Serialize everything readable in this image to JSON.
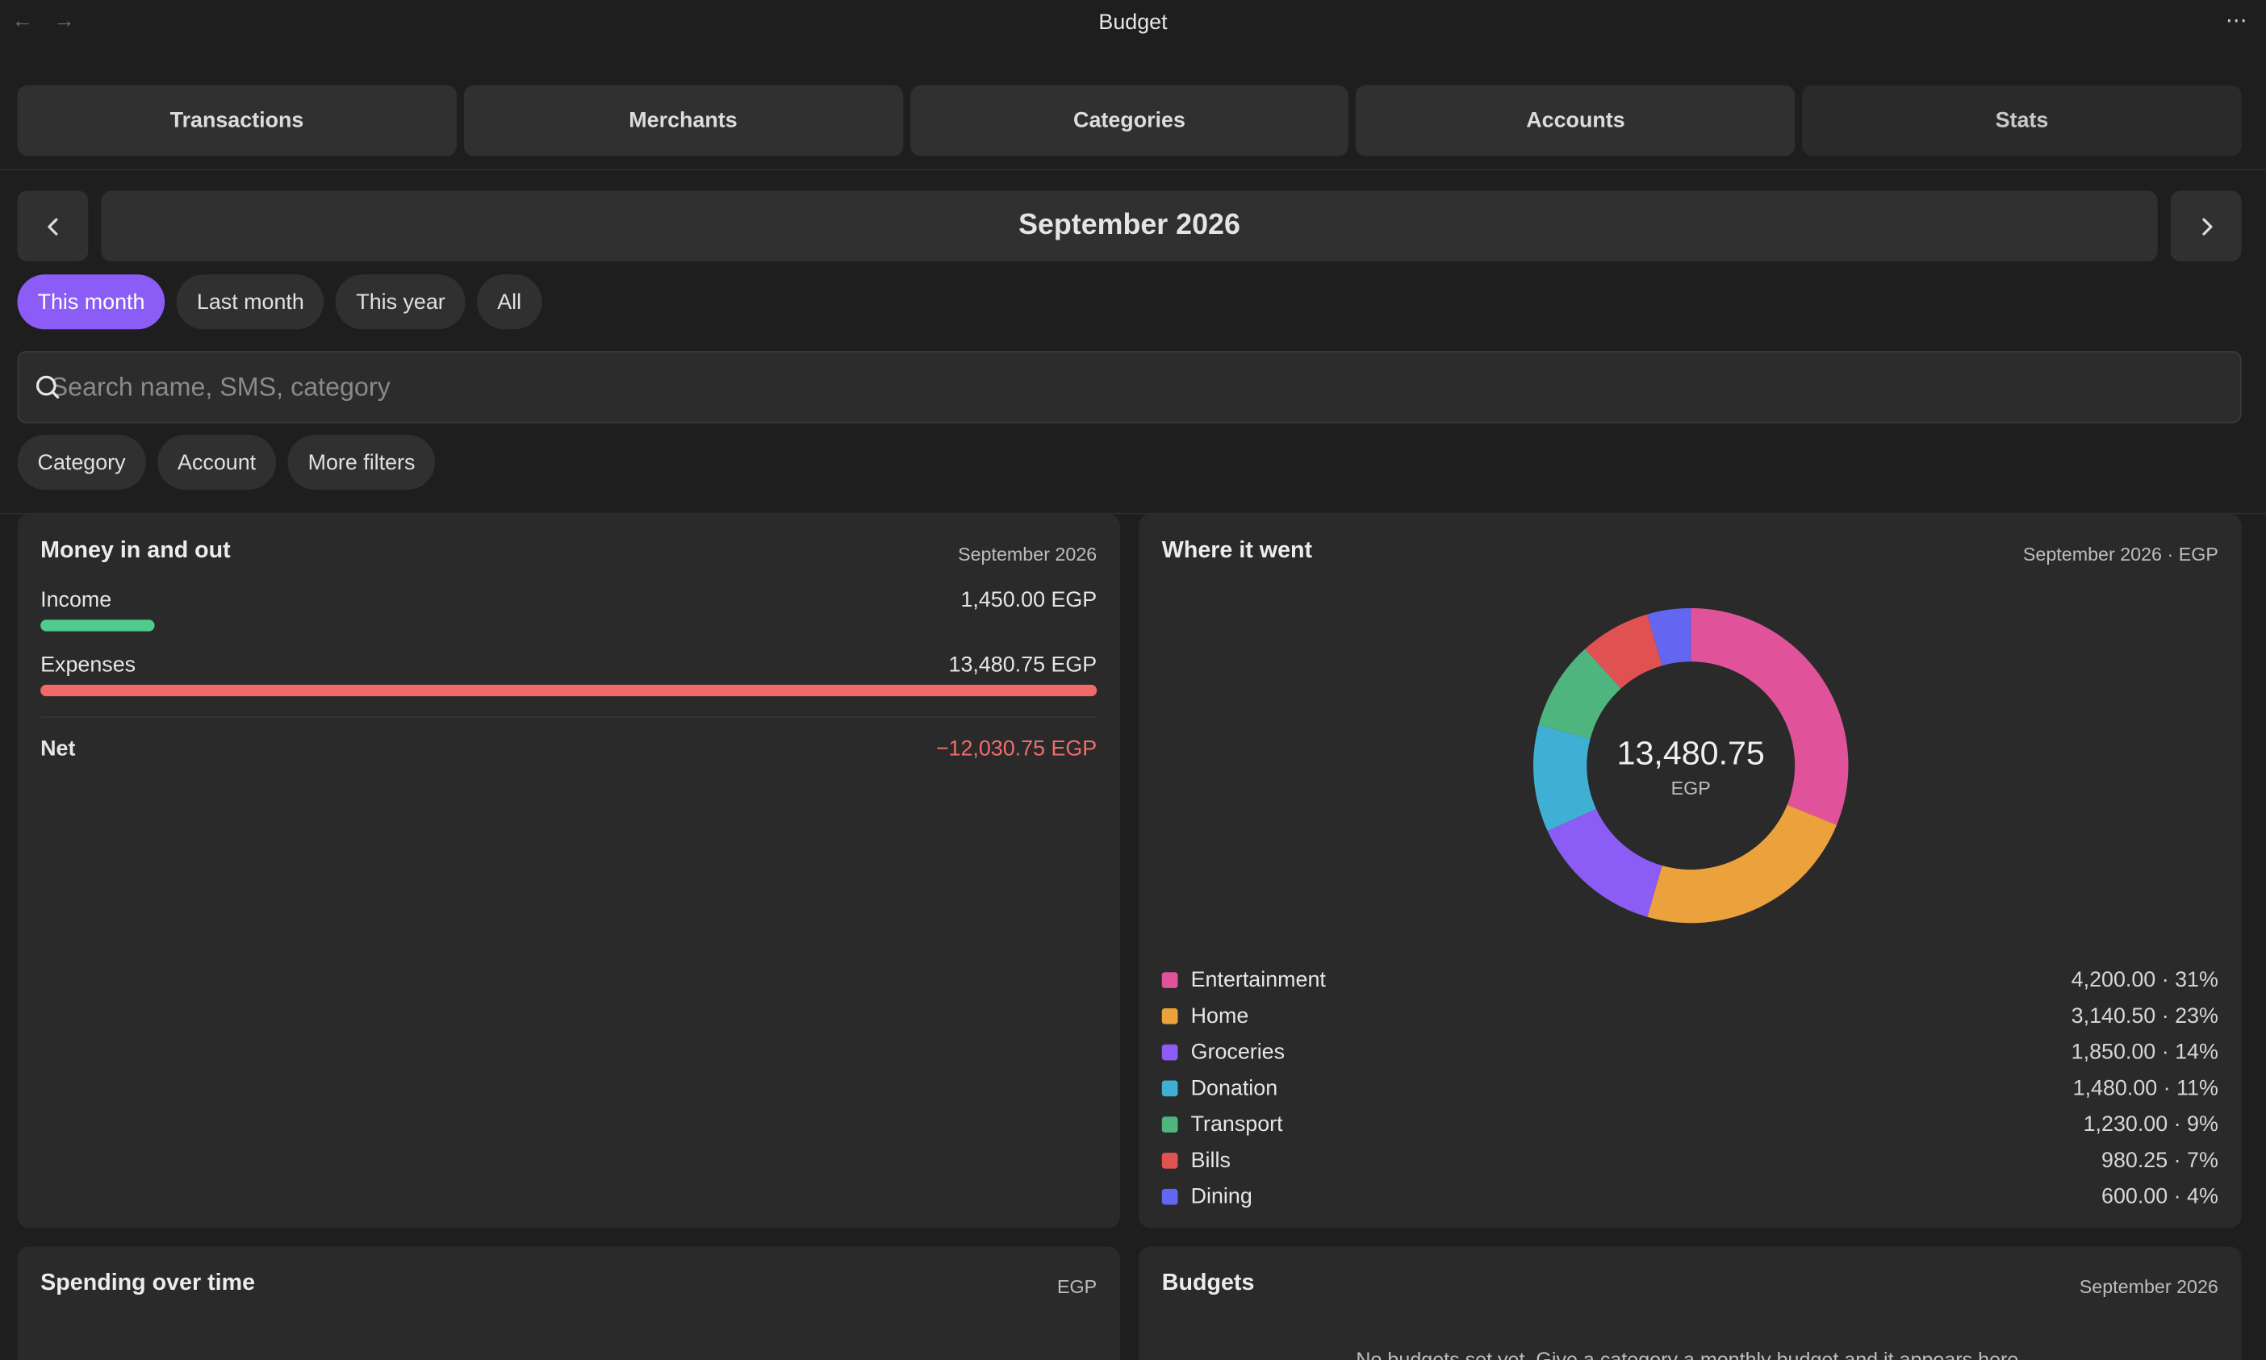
{
  "window": {
    "title": "Budget"
  },
  "tabs": [
    {
      "label": "Transactions"
    },
    {
      "label": "Merchants"
    },
    {
      "label": "Categories"
    },
    {
      "label": "Accounts"
    },
    {
      "label": "Stats"
    }
  ],
  "period": {
    "label": "September 2026"
  },
  "chips": [
    {
      "label": "This month",
      "active": true
    },
    {
      "label": "Last month"
    },
    {
      "label": "This year"
    },
    {
      "label": "All"
    }
  ],
  "search": {
    "placeholder": "Search name, SMS, category"
  },
  "filters": [
    {
      "label": "Category"
    },
    {
      "label": "Account"
    },
    {
      "label": "More filters"
    }
  ],
  "money": {
    "title": "Money in and out",
    "meta": "September 2026",
    "income_label": "Income",
    "income_value": "1,450.00 EGP",
    "income_fraction": 0.1076,
    "expenses_label": "Expenses",
    "expenses_value": "13,480.75 EGP",
    "expenses_fraction": 1.0,
    "net_label": "Net",
    "net_value": "−12,030.75 EGP",
    "colors": {
      "income": "#4ecb8d",
      "expenses": "#ef6b6b",
      "net": "#f26d6d"
    }
  },
  "where": {
    "title": "Where it went",
    "meta": "September 2026 · EGP",
    "total": "13,480.75",
    "unit": "EGP",
    "categories": [
      {
        "name": "Entertainment",
        "value": "4,200.00 · 31%",
        "amount": 4200.0,
        "color": "#e0539a"
      },
      {
        "name": "Home",
        "value": "3,140.50 · 23%",
        "amount": 3140.5,
        "color": "#eba23c"
      },
      {
        "name": "Groceries",
        "value": "1,850.00 · 14%",
        "amount": 1850.0,
        "color": "#8b5cf6"
      },
      {
        "name": "Donation",
        "value": "1,480.00 · 11%",
        "amount": 1480.0,
        "color": "#3fb0d4"
      },
      {
        "name": "Transport",
        "value": "1,230.00 · 9%",
        "amount": 1230.0,
        "color": "#4fb57e"
      },
      {
        "name": "Bills",
        "value": "980.25 · 7%",
        "amount": 980.25,
        "color": "#e05252"
      },
      {
        "name": "Dining",
        "value": "600.00 · 4%",
        "amount": 600.0,
        "color": "#6366f1"
      }
    ]
  },
  "spending": {
    "title": "Spending over time",
    "meta": "EGP"
  },
  "budgets": {
    "title": "Budgets",
    "meta": "September 2026",
    "empty": "No budgets set yet. Give a category a monthly budget and it appears here."
  }
}
